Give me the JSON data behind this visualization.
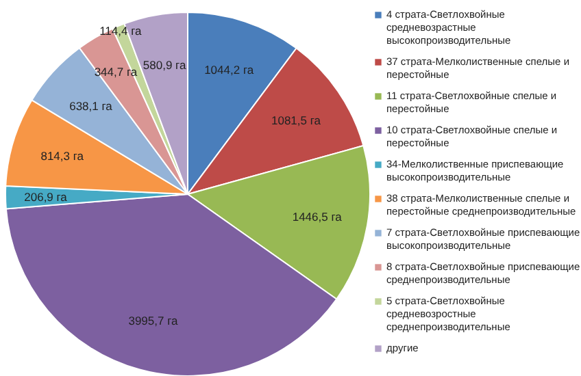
{
  "chart_data": {
    "type": "pie",
    "categories": [
      "4 страта-Светлохвойные средневозрастные высокопроизводительные",
      "37 страта-Мелколиственные спелые и перестойные",
      "11 страта-Светлохвойные спелые и перестойные",
      "10 страта-Светлохвойные спелые и перестойные",
      "34-Мелколиственные приспевающие высокопроизводительные",
      "38 страта-Мелколиственные спелые и перестойные среднепроизводительные",
      "7 страта-Светлохвойные приспевающие высокопроизводительные",
      "8 страта-Светлохвойные приспевающие среднепроизводительные",
      "5 страта-Светлохвойные средневозростные среднепроизводительные",
      "другие"
    ],
    "values": [
      1044.2,
      1081.5,
      1446.5,
      3995.7,
      206.9,
      814.3,
      638.1,
      344.7,
      114.4,
      580.9
    ],
    "value_labels": [
      "1044,2 га",
      "1081,5 га",
      "1446,5 га",
      "3995,7 га",
      "206,9 га",
      "814,3 га",
      "638,1 га",
      "344,7 га",
      "114,4 га",
      "580,9 га"
    ],
    "colors": [
      "#4a7ebb",
      "#be4b48",
      "#98b954",
      "#7d60a0",
      "#46aac5",
      "#f79646",
      "#95b3d7",
      "#d99694",
      "#c3d69b",
      "#b2a1c7"
    ],
    "legend": "right"
  }
}
